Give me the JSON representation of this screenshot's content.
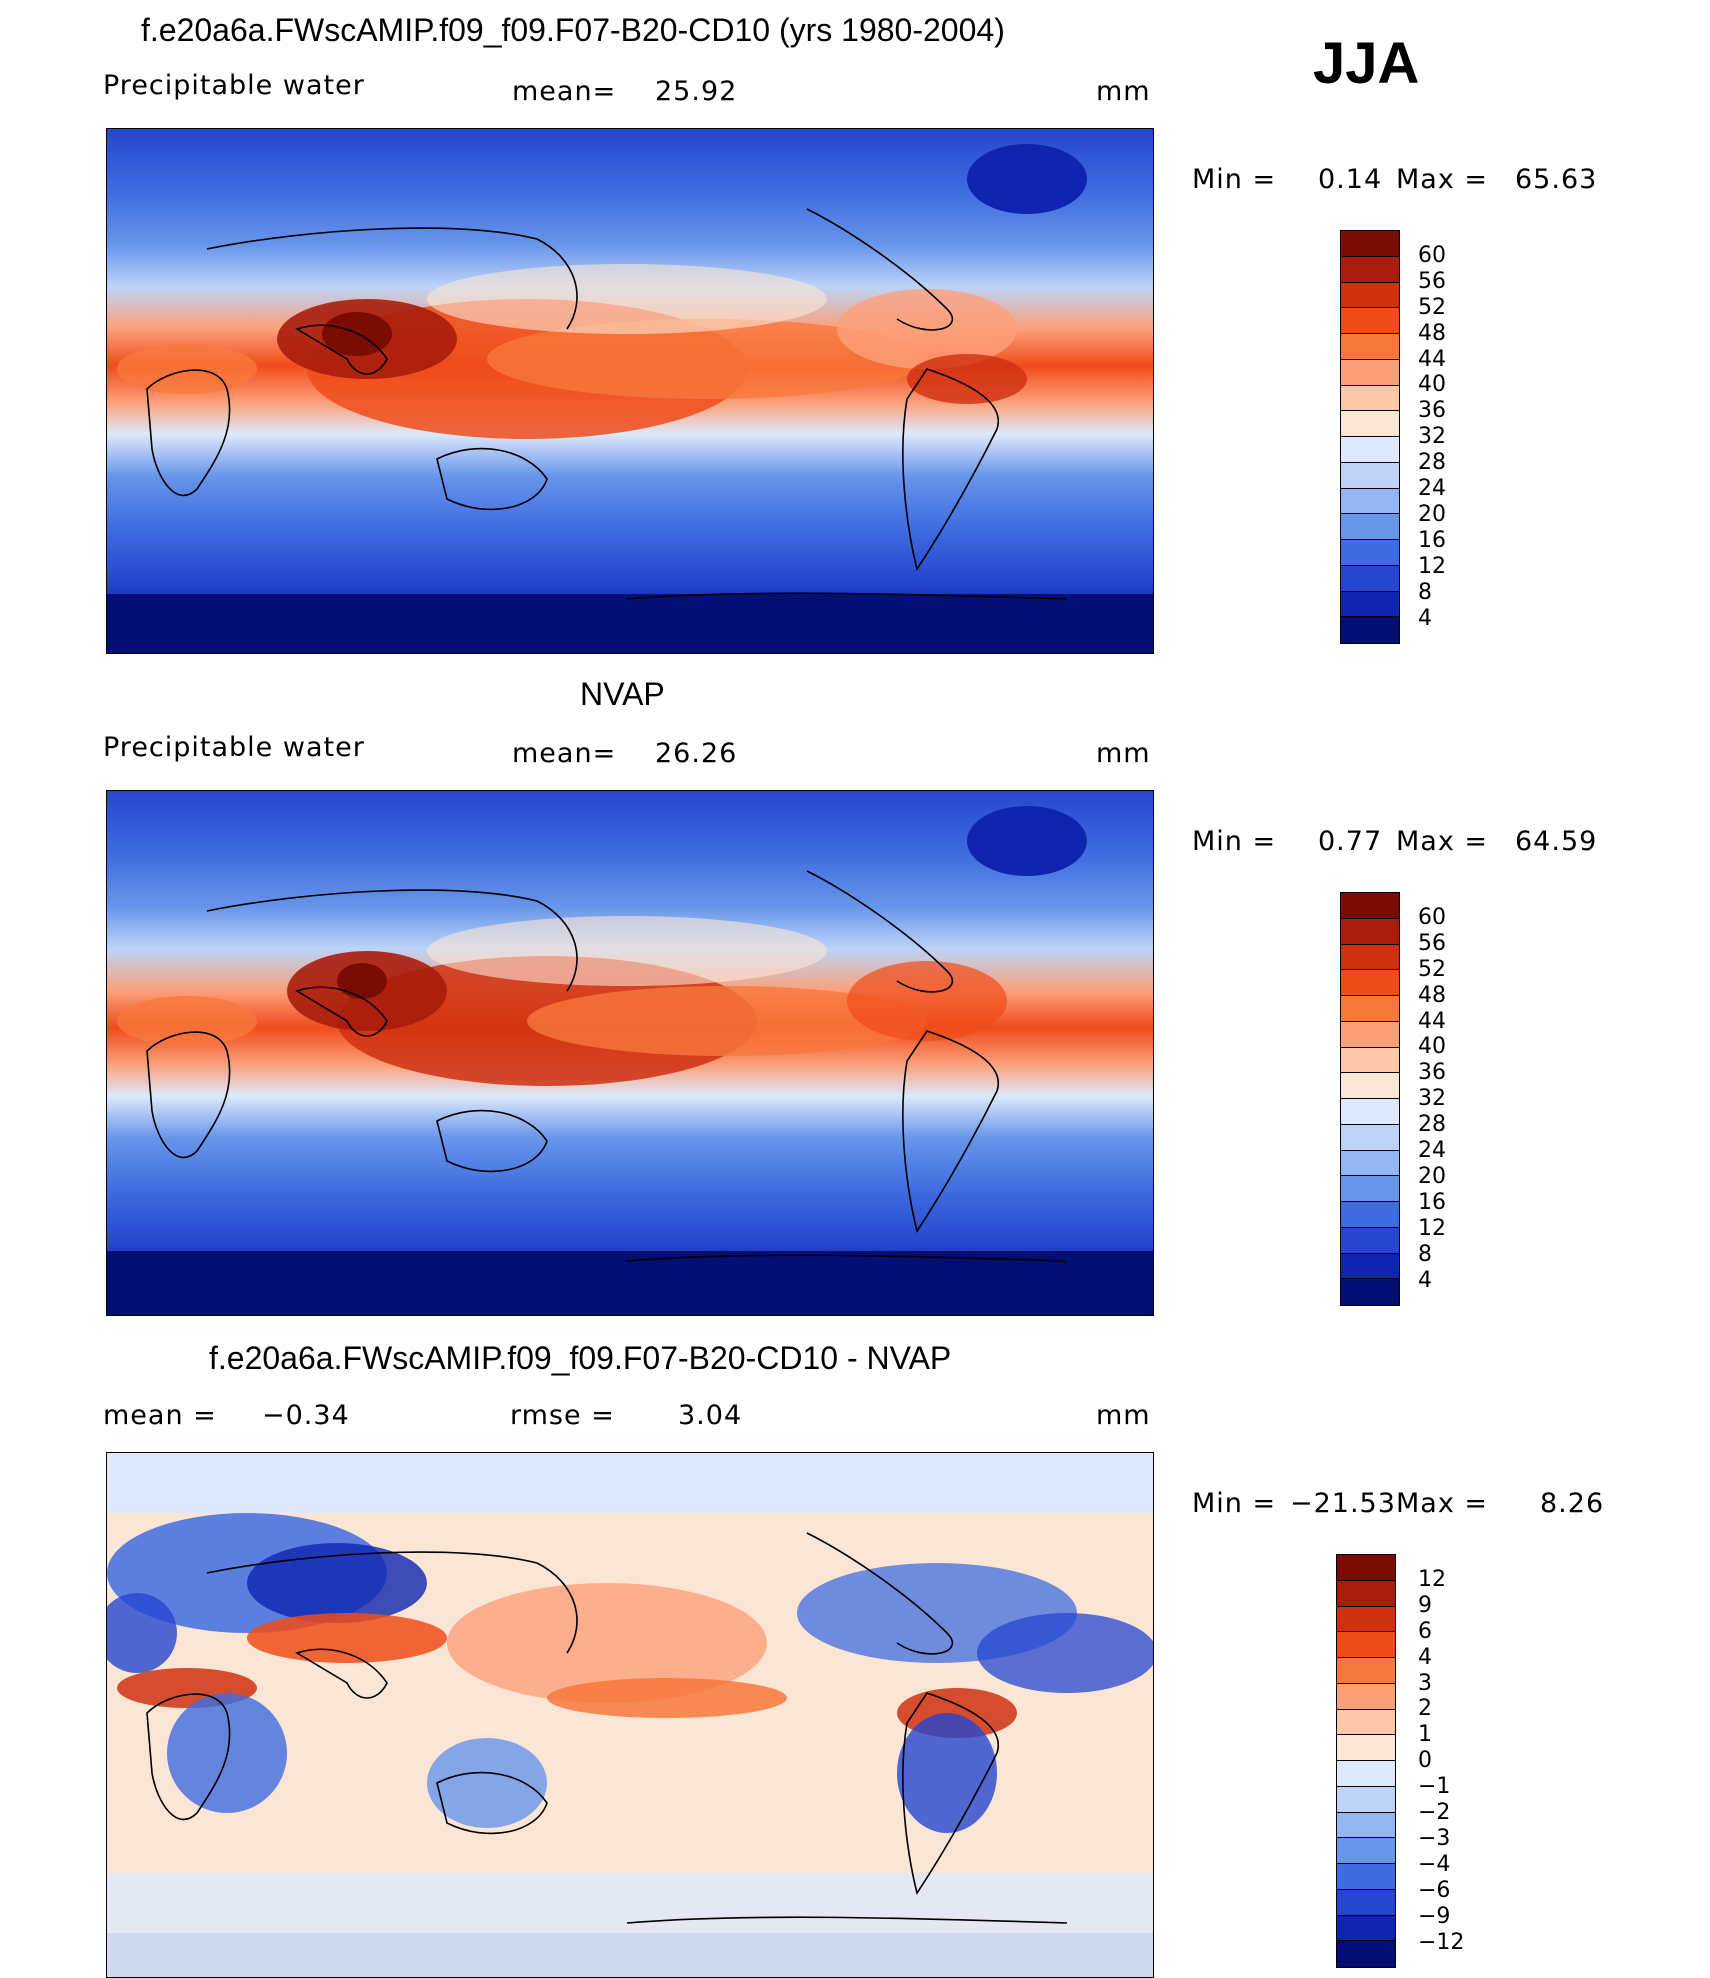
{
  "season": "JJA",
  "panels": [
    {
      "id": "model",
      "title": "f.e20a6a.FWscAMIP.f09_f09.F07-B20-CD10 (yrs 1980-2004)",
      "left_label": "Precipitable  water",
      "stat_label": "mean=",
      "stat_value": "25.92",
      "units": "mm",
      "min_label": "Min  =",
      "min_value": "0.14",
      "max_label": "Max  =",
      "max_value": "65.63",
      "colorbar": {
        "labels": [
          "60",
          "56",
          "52",
          "48",
          "44",
          "40",
          "36",
          "32",
          "28",
          "24",
          "20",
          "16",
          "12",
          "8",
          "4"
        ],
        "colors": [
          "#7a0c04",
          "#a81d0c",
          "#cf3010",
          "#ef4c1a",
          "#f7783c",
          "#fca07a",
          "#fdc8aa",
          "#fbe6d6",
          "#dde9fa",
          "#bcd3f7",
          "#93b6f2",
          "#6795ea",
          "#3f6ce0",
          "#2646cf",
          "#0f25b0",
          "#030f75"
        ]
      }
    },
    {
      "id": "obs",
      "title": "NVAP",
      "left_label": "Precipitable  water",
      "stat_label": "mean=",
      "stat_value": "26.26",
      "units": "mm",
      "min_label": "Min  =",
      "min_value": "0.77",
      "max_label": "Max  =",
      "max_value": "64.59",
      "colorbar": {
        "labels": [
          "60",
          "56",
          "52",
          "48",
          "44",
          "40",
          "36",
          "32",
          "28",
          "24",
          "20",
          "16",
          "12",
          "8",
          "4"
        ],
        "colors": [
          "#7a0c04",
          "#a81d0c",
          "#cf3010",
          "#ef4c1a",
          "#f7783c",
          "#fca07a",
          "#fdc8aa",
          "#fbe6d6",
          "#dde9fa",
          "#bcd3f7",
          "#93b6f2",
          "#6795ea",
          "#3f6ce0",
          "#2646cf",
          "#0f25b0",
          "#030f75"
        ]
      }
    },
    {
      "id": "diff",
      "title": "f.e20a6a.FWscAMIP.f09_f09.F07-B20-CD10 - NVAP",
      "left_label": "mean  =",
      "left_value": "−0.34",
      "stat_label": "rmse  =",
      "stat_value": "3.04",
      "units": "mm",
      "min_label": "Min  =",
      "min_value": "−21.53",
      "max_label": "Max  =",
      "max_value": "8.26",
      "colorbar": {
        "labels": [
          "12",
          "9",
          "6",
          "4",
          "3",
          "2",
          "1",
          "0",
          "−1",
          "−2",
          "−3",
          "−4",
          "−6",
          "−9",
          "−12"
        ],
        "colors": [
          "#7a0c04",
          "#a81d0c",
          "#cf3010",
          "#ef4c1a",
          "#f7783c",
          "#fca07a",
          "#fdc8aa",
          "#fbe6d6",
          "#dde9fa",
          "#bcd3f7",
          "#93b6f2",
          "#6795ea",
          "#3f6ce0",
          "#2646cf",
          "#0f25b0",
          "#030f75"
        ]
      }
    }
  ],
  "colors": {
    "dark_blue": "#030f75",
    "mid_blue": "#3f6ce0",
    "light_blue": "#bcd3f7",
    "cream": "#fbe6d6",
    "light_red": "#fca07a",
    "red": "#ef4c1a",
    "dark_red": "#7a0c04"
  }
}
